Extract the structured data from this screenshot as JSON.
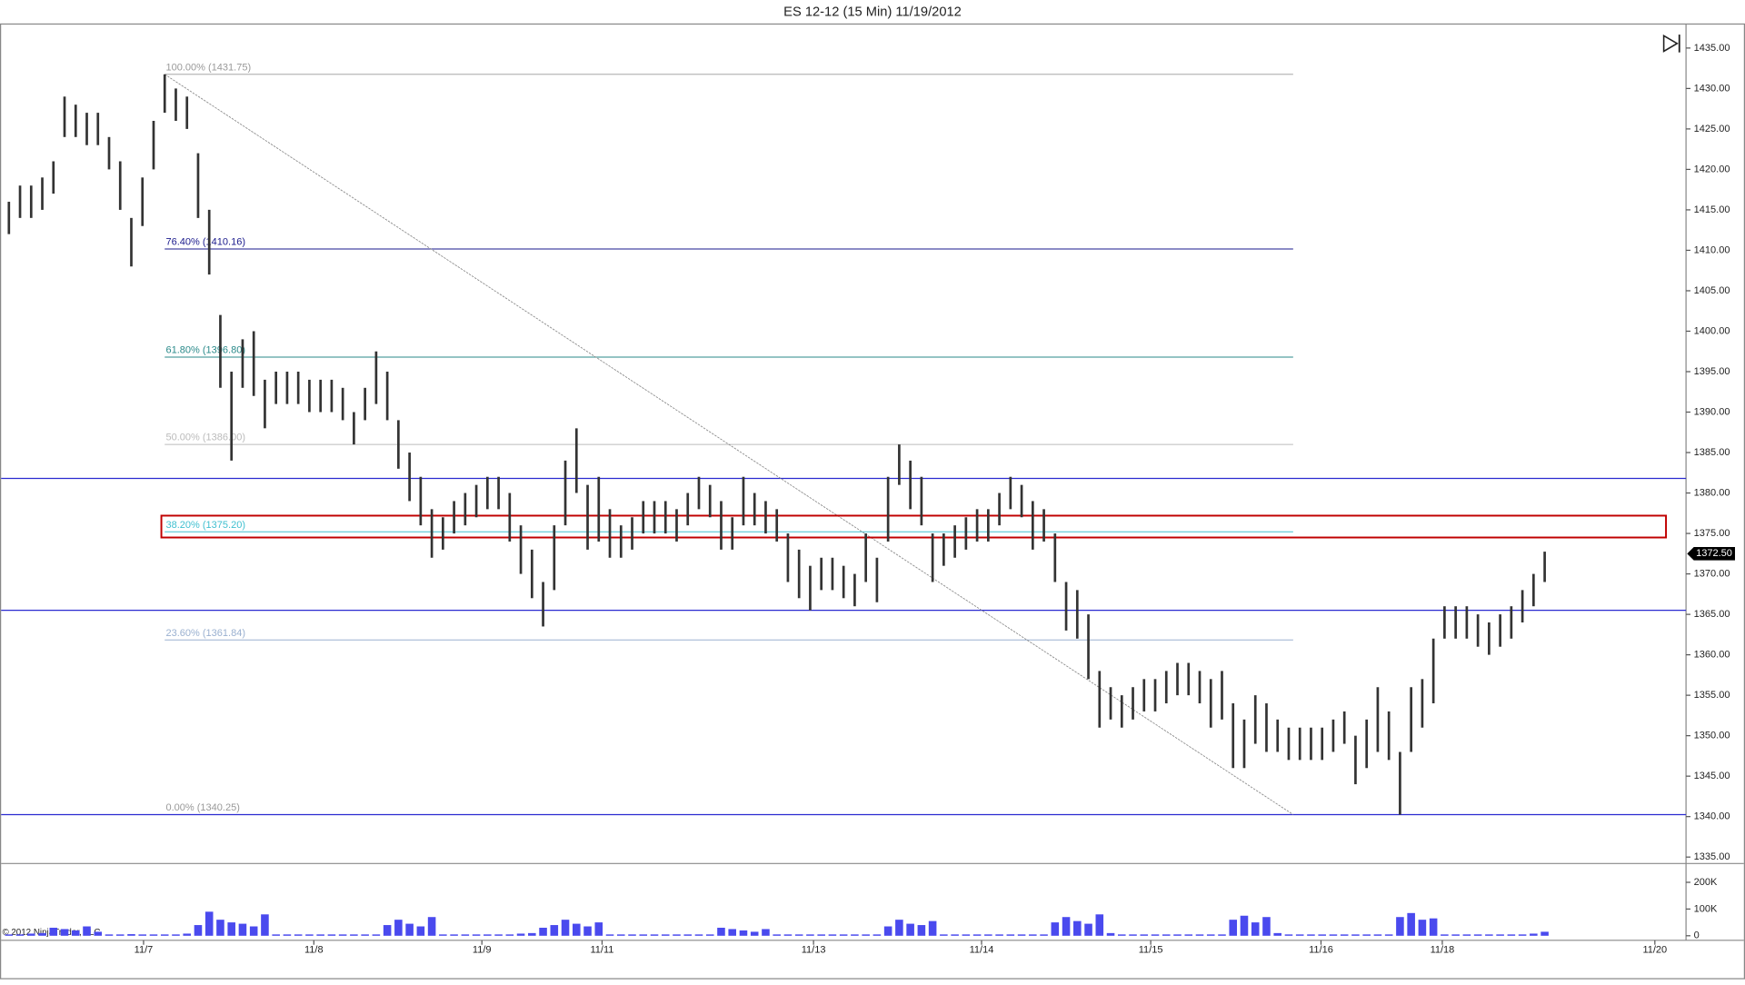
{
  "chart_data": {
    "type": "range-bar",
    "title": "ES 12-12 (15 Min)  11/19/2012",
    "copyright": "© 2012 NinjaTrader, LLC",
    "x": [
      0,
      1,
      2,
      3,
      4,
      5,
      6,
      7,
      8,
      9,
      10,
      11,
      12,
      13,
      14,
      15,
      16,
      17,
      18,
      19,
      20,
      21,
      22,
      23,
      24,
      25,
      26,
      27,
      28,
      29,
      30,
      31,
      32,
      33,
      34,
      35,
      36,
      37,
      38,
      39,
      40,
      41,
      42,
      43,
      44,
      45,
      46,
      47,
      48,
      49,
      50,
      51,
      52,
      53,
      54,
      55,
      56,
      57,
      58,
      59,
      60,
      61,
      62,
      63,
      64,
      65,
      66,
      67,
      68,
      69,
      70,
      71,
      72,
      73,
      74,
      75,
      76,
      77,
      78,
      79,
      80,
      81,
      82,
      83,
      84,
      85,
      86,
      87,
      88,
      89,
      90,
      91,
      92,
      93,
      94,
      95,
      96,
      97,
      98,
      99,
      100,
      101,
      102,
      103,
      104,
      105,
      106,
      107,
      108,
      109,
      110,
      111,
      112,
      113,
      114,
      115,
      116,
      117,
      118,
      119,
      120,
      121,
      122,
      123,
      124,
      125,
      126,
      127,
      128,
      129,
      130,
      131,
      132,
      133,
      134,
      135,
      136,
      137,
      138
    ],
    "high": [
      1416,
      1418,
      1418,
      1419,
      1421,
      1429,
      1428,
      1427,
      1427,
      1424,
      1421,
      1414,
      1419,
      1426,
      1431.75,
      1430,
      1429,
      1422,
      1415,
      1402,
      1395,
      1399,
      1400,
      1394,
      1395,
      1395,
      1395,
      1394,
      1394,
      1394,
      1393,
      1390,
      1393,
      1397.5,
      1395,
      1389,
      1385,
      1382,
      1378,
      1377,
      1379,
      1380,
      1381,
      1382,
      1382,
      1380,
      1376,
      1373,
      1369,
      1376,
      1384,
      1388,
      1381,
      1382,
      1378,
      1376,
      1377,
      1379,
      1379,
      1379,
      1378,
      1380,
      1382,
      1381,
      1379,
      1377,
      1382,
      1380,
      1379,
      1378,
      1375,
      1373,
      1371,
      1372,
      1372,
      1371,
      1370,
      1375,
      1372,
      1382,
      1386,
      1384,
      1382,
      1375,
      1375,
      1376,
      1377,
      1378,
      1378,
      1380,
      1382,
      1381,
      1379,
      1378,
      1375,
      1369,
      1368,
      1365,
      1358,
      1356,
      1355,
      1356,
      1357,
      1357,
      1358,
      1359,
      1359,
      1358,
      1357,
      1358,
      1354,
      1352,
      1355,
      1354,
      1352,
      1351,
      1351,
      1351,
      1351,
      1352,
      1353,
      1350,
      1352,
      1356,
      1353,
      1348,
      1356,
      1357,
      1362,
      1366,
      1366,
      1366,
      1365,
      1364,
      1365,
      1366,
      1368,
      1370,
      1372.75
    ],
    "low": [
      1412,
      1414,
      1414,
      1415,
      1417,
      1424,
      1424,
      1423,
      1423,
      1420,
      1415,
      1408,
      1413,
      1420,
      1427,
      1426,
      1425,
      1414,
      1407,
      1393,
      1384,
      1393,
      1392,
      1388,
      1391,
      1391,
      1391,
      1390,
      1390,
      1390,
      1389,
      1386,
      1389,
      1391,
      1389,
      1383,
      1379,
      1376,
      1372,
      1373,
      1375,
      1376,
      1377,
      1378,
      1378,
      1374,
      1370,
      1367,
      1363.5,
      1368,
      1376,
      1380,
      1373,
      1374,
      1372,
      1372,
      1373,
      1375,
      1375,
      1375,
      1374,
      1376,
      1378,
      1377,
      1373,
      1373,
      1376,
      1376,
      1375,
      1374,
      1369,
      1367,
      1365.5,
      1368,
      1368,
      1367,
      1366,
      1369,
      1366.5,
      1374,
      1381,
      1378,
      1376,
      1369,
      1371,
      1372,
      1373,
      1374,
      1374,
      1376,
      1378,
      1377,
      1373,
      1374,
      1369,
      1363,
      1362,
      1357,
      1351,
      1352,
      1351,
      1352,
      1353,
      1353,
      1354,
      1355,
      1355,
      1354,
      1351,
      1352,
      1346,
      1346,
      1349,
      1348,
      1348,
      1347,
      1347,
      1347,
      1347,
      1348,
      1349,
      1344,
      1346,
      1348,
      1347,
      1340.25,
      1348,
      1351,
      1354,
      1362,
      1362,
      1362,
      1361,
      1360,
      1361,
      1362,
      1364,
      1366,
      1369
    ],
    "volume": [
      5000,
      5000,
      8000,
      10000,
      30000,
      25000,
      20000,
      35000,
      15000,
      5000,
      5000,
      6000,
      5000,
      5000,
      5000,
      5000,
      8000,
      40000,
      90000,
      60000,
      50000,
      45000,
      35000,
      80000,
      5000,
      5000,
      5000,
      5000,
      5000,
      5000,
      5000,
      5000,
      5000,
      5000,
      40000,
      60000,
      45000,
      35000,
      70000,
      5000,
      5000,
      5000,
      5000,
      5000,
      5000,
      5000,
      8000,
      10000,
      30000,
      40000,
      60000,
      45000,
      35000,
      50000,
      5000,
      5000,
      5000,
      5000,
      5000,
      5000,
      5000,
      5000,
      5000,
      5000,
      30000,
      25000,
      20000,
      15000,
      25000,
      5000,
      5000,
      5000,
      5000,
      5000,
      5000,
      5000,
      5000,
      5000,
      5000,
      35000,
      60000,
      45000,
      40000,
      55000,
      5000,
      5000,
      5000,
      5000,
      5000,
      5000,
      5000,
      5000,
      5000,
      5000,
      50000,
      70000,
      55000,
      45000,
      80000,
      10000,
      5000,
      5000,
      5000,
      5000,
      5000,
      5000,
      5000,
      5000,
      5000,
      5000,
      60000,
      75000,
      50000,
      70000,
      10000,
      5000,
      5000,
      5000,
      5000,
      5000,
      5000,
      5000,
      5000,
      5000,
      5000,
      70000,
      85000,
      60000,
      65000,
      5000,
      5000,
      5000,
      5000,
      5000,
      5000,
      5000,
      5000,
      8000,
      15000
    ],
    "bar_color": "#333333",
    "volume_color": "#4a4aee",
    "xlim": [
      -0.7,
      150.7
    ],
    "xticks": [
      {
        "value": 12.1,
        "label": "11/7"
      },
      {
        "value": 27.4,
        "label": "11/8"
      },
      {
        "value": 42.5,
        "label": "11/9"
      },
      {
        "value": 53.3,
        "label": "11/11"
      },
      {
        "value": 72.3,
        "label": "11/13"
      },
      {
        "value": 87.4,
        "label": "11/14"
      },
      {
        "value": 102.6,
        "label": "11/15"
      },
      {
        "value": 117.9,
        "label": "11/16"
      },
      {
        "value": 128.8,
        "label": "11/18"
      },
      {
        "value": 147.9,
        "label": "11/20"
      }
    ],
    "ylim": [
      1334.2,
      1437.9
    ],
    "yticks": [
      {
        "value": 1335,
        "label": "1335.00"
      },
      {
        "value": 1340,
        "label": "1340.00"
      },
      {
        "value": 1345,
        "label": "1345.00"
      },
      {
        "value": 1350,
        "label": "1350.00"
      },
      {
        "value": 1355,
        "label": "1355.00"
      },
      {
        "value": 1360,
        "label": "1360.00"
      },
      {
        "value": 1365,
        "label": "1365.00"
      },
      {
        "value": 1370,
        "label": "1370.00"
      },
      {
        "value": 1375,
        "label": "1375.00"
      },
      {
        "value": 1380,
        "label": "1380.00"
      },
      {
        "value": 1385,
        "label": "1385.00"
      },
      {
        "value": 1390,
        "label": "1390.00"
      },
      {
        "value": 1395,
        "label": "1395.00"
      },
      {
        "value": 1400,
        "label": "1400.00"
      },
      {
        "value": 1405,
        "label": "1405.00"
      },
      {
        "value": 1410,
        "label": "1410.00"
      },
      {
        "value": 1415,
        "label": "1415.00"
      },
      {
        "value": 1420,
        "label": "1420.00"
      },
      {
        "value": 1425,
        "label": "1425.00"
      },
      {
        "value": 1430,
        "label": "1430.00"
      },
      {
        "value": 1435,
        "label": "1435.00"
      }
    ],
    "vlim": [
      -17000,
      262000
    ],
    "vticks": [
      0,
      {
        "value": 100000,
        "label": "100K"
      },
      {
        "value": 200000,
        "label": "200K"
      }
    ],
    "last_price": {
      "value": 1372.5,
      "label": "1372.50"
    },
    "fib": {
      "start_x": 14,
      "end_x": 115.4,
      "levels": [
        {
          "label": "100.00% (1431.75)",
          "value": 1431.75,
          "color": "#999999"
        },
        {
          "label": "76.40% (1410.16)",
          "value": 1410.16,
          "color": "#1a1a8c"
        },
        {
          "label": "61.80% (1396.80)",
          "value": 1396.8,
          "color": "#2a8a8a"
        },
        {
          "label": "50.00% (1386.00)",
          "value": 1386,
          "color": "#bbbbbb"
        },
        {
          "label": "38.20% (1375.20)",
          "value": 1375.2,
          "color": "#40c0d0"
        },
        {
          "label": "23.60% (1361.84)",
          "value": 1361.84,
          "color": "#9ab0d0"
        },
        {
          "label": "0.00% (1340.25)",
          "value": 1340.25,
          "color": "#999999"
        }
      ]
    },
    "trend_line": {
      "x": [
        14,
        115.4
      ],
      "y": [
        1431.75,
        1340.25
      ],
      "color": "#888888"
    },
    "hlines": [
      {
        "value": 1381.8,
        "color": "#2a2ad0"
      },
      {
        "value": 1365.5,
        "color": "#2a2ad0"
      },
      {
        "value": 1340.25,
        "color": "#2a2ad0"
      }
    ],
    "zone": {
      "x": [
        13.7,
        148.9
      ],
      "y": [
        1374.5,
        1377.2
      ],
      "color": "#c00000"
    }
  }
}
